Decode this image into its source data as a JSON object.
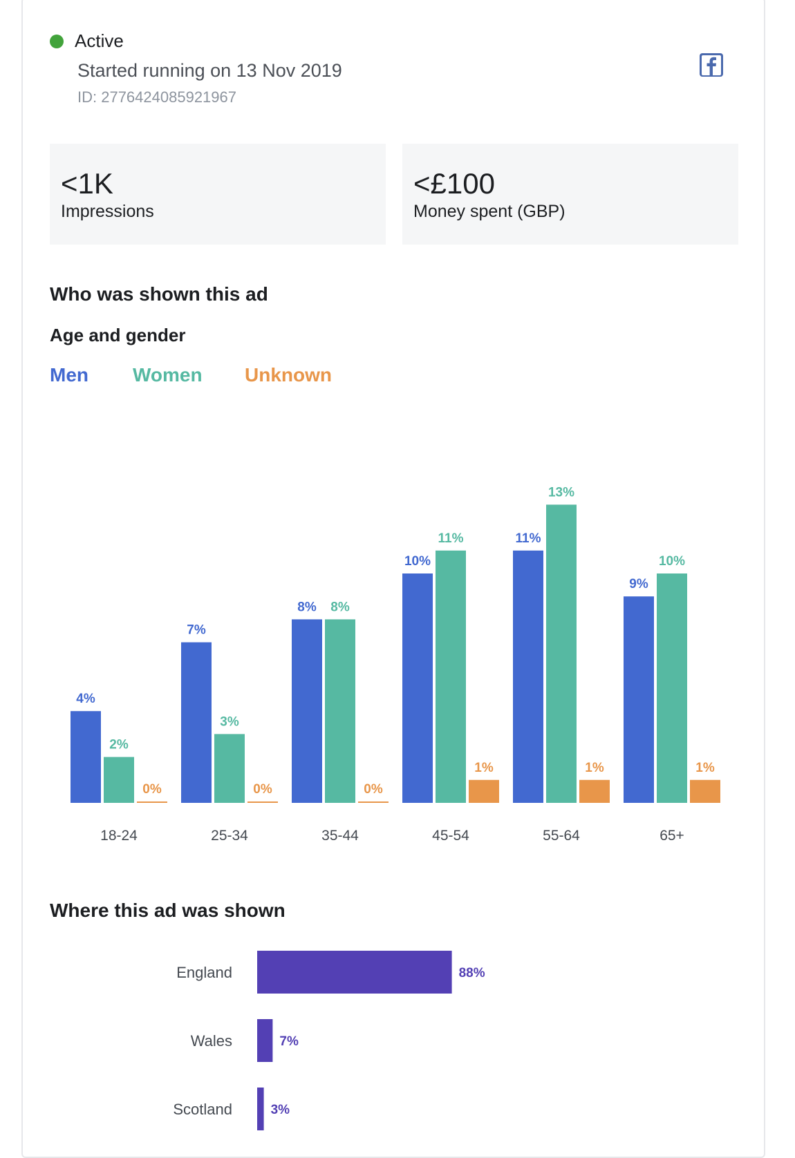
{
  "header": {
    "status_label": "Active",
    "started": "Started running on 13 Nov 2019",
    "ad_id": "ID: 2776424085921967",
    "platform_icon": "facebook-icon",
    "status_color": "#42a33b"
  },
  "stats": {
    "impressions": {
      "value": "<1K",
      "label": "Impressions"
    },
    "spend": {
      "value": "<£100",
      "label": "Money spent (GBP)"
    }
  },
  "sections": {
    "who": "Who was shown this ad",
    "age_gender": "Age and gender",
    "where": "Where this ad was shown"
  },
  "legend": [
    {
      "label": "Men",
      "color": "#4269d0"
    },
    {
      "label": "Women",
      "color": "#56b9a2"
    },
    {
      "label": "Unknown",
      "color": "#e8964a"
    }
  ],
  "chart_data": [
    {
      "type": "bar",
      "categories": [
        "18-24",
        "25-34",
        "35-44",
        "45-54",
        "55-64",
        "65+"
      ],
      "series": [
        {
          "name": "Men",
          "color": "#4269d0",
          "values": [
            4,
            7,
            8,
            10,
            11,
            9
          ]
        },
        {
          "name": "Women",
          "color": "#56b9a2",
          "values": [
            2,
            3,
            8,
            11,
            13,
            10
          ]
        },
        {
          "name": "Unknown",
          "color": "#e8964a",
          "values": [
            0,
            0,
            0,
            1,
            1,
            1
          ]
        }
      ],
      "value_suffix": "%",
      "grid": false,
      "legend": "top-left"
    },
    {
      "type": "bar",
      "orientation": "horizontal",
      "categories": [
        "England",
        "Wales",
        "Scotland"
      ],
      "values": [
        88,
        7,
        3
      ],
      "value_suffix": "%",
      "color": "#5340b4"
    }
  ]
}
